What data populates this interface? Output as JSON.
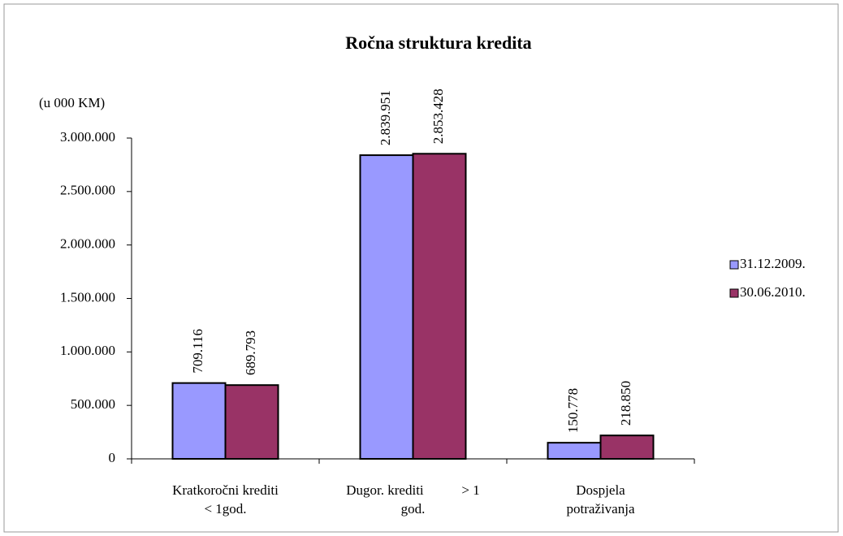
{
  "chart_data": {
    "type": "bar",
    "title": "Ročna struktura kredita",
    "y_label": "(u 000 KM)",
    "categories": [
      [
        "Kratkoročni krediti",
        "< 1god."
      ],
      [
        "Dugor. krediti           > 1",
        "god."
      ],
      [
        "Dospjela",
        "potraživanja"
      ]
    ],
    "series": [
      {
        "name": "31.12.2009.",
        "color": "#9999ff",
        "values": [
          709116,
          2839951,
          150778
        ],
        "value_labels": [
          "709.116",
          "2.839.951",
          "150.778"
        ]
      },
      {
        "name": "30.06.2010.",
        "color": "#993366",
        "values": [
          689793,
          2853428,
          218850
        ],
        "value_labels": [
          "689.793",
          "2.853.428",
          "218.850"
        ]
      }
    ],
    "ylim": [
      0,
      3000000
    ],
    "yticks": [
      0,
      {
        "value": 500000,
        "label": "500.000"
      },
      {
        "value": 1000000,
        "label": "1.000.000"
      },
      {
        "value": 1500000,
        "label": "1.500.000"
      },
      {
        "value": 2000000,
        "label": "2.000.000"
      },
      {
        "value": 2500000,
        "label": "2.500.000"
      },
      {
        "value": 3000000,
        "label": "3.000.000"
      }
    ],
    "legend": "right"
  }
}
